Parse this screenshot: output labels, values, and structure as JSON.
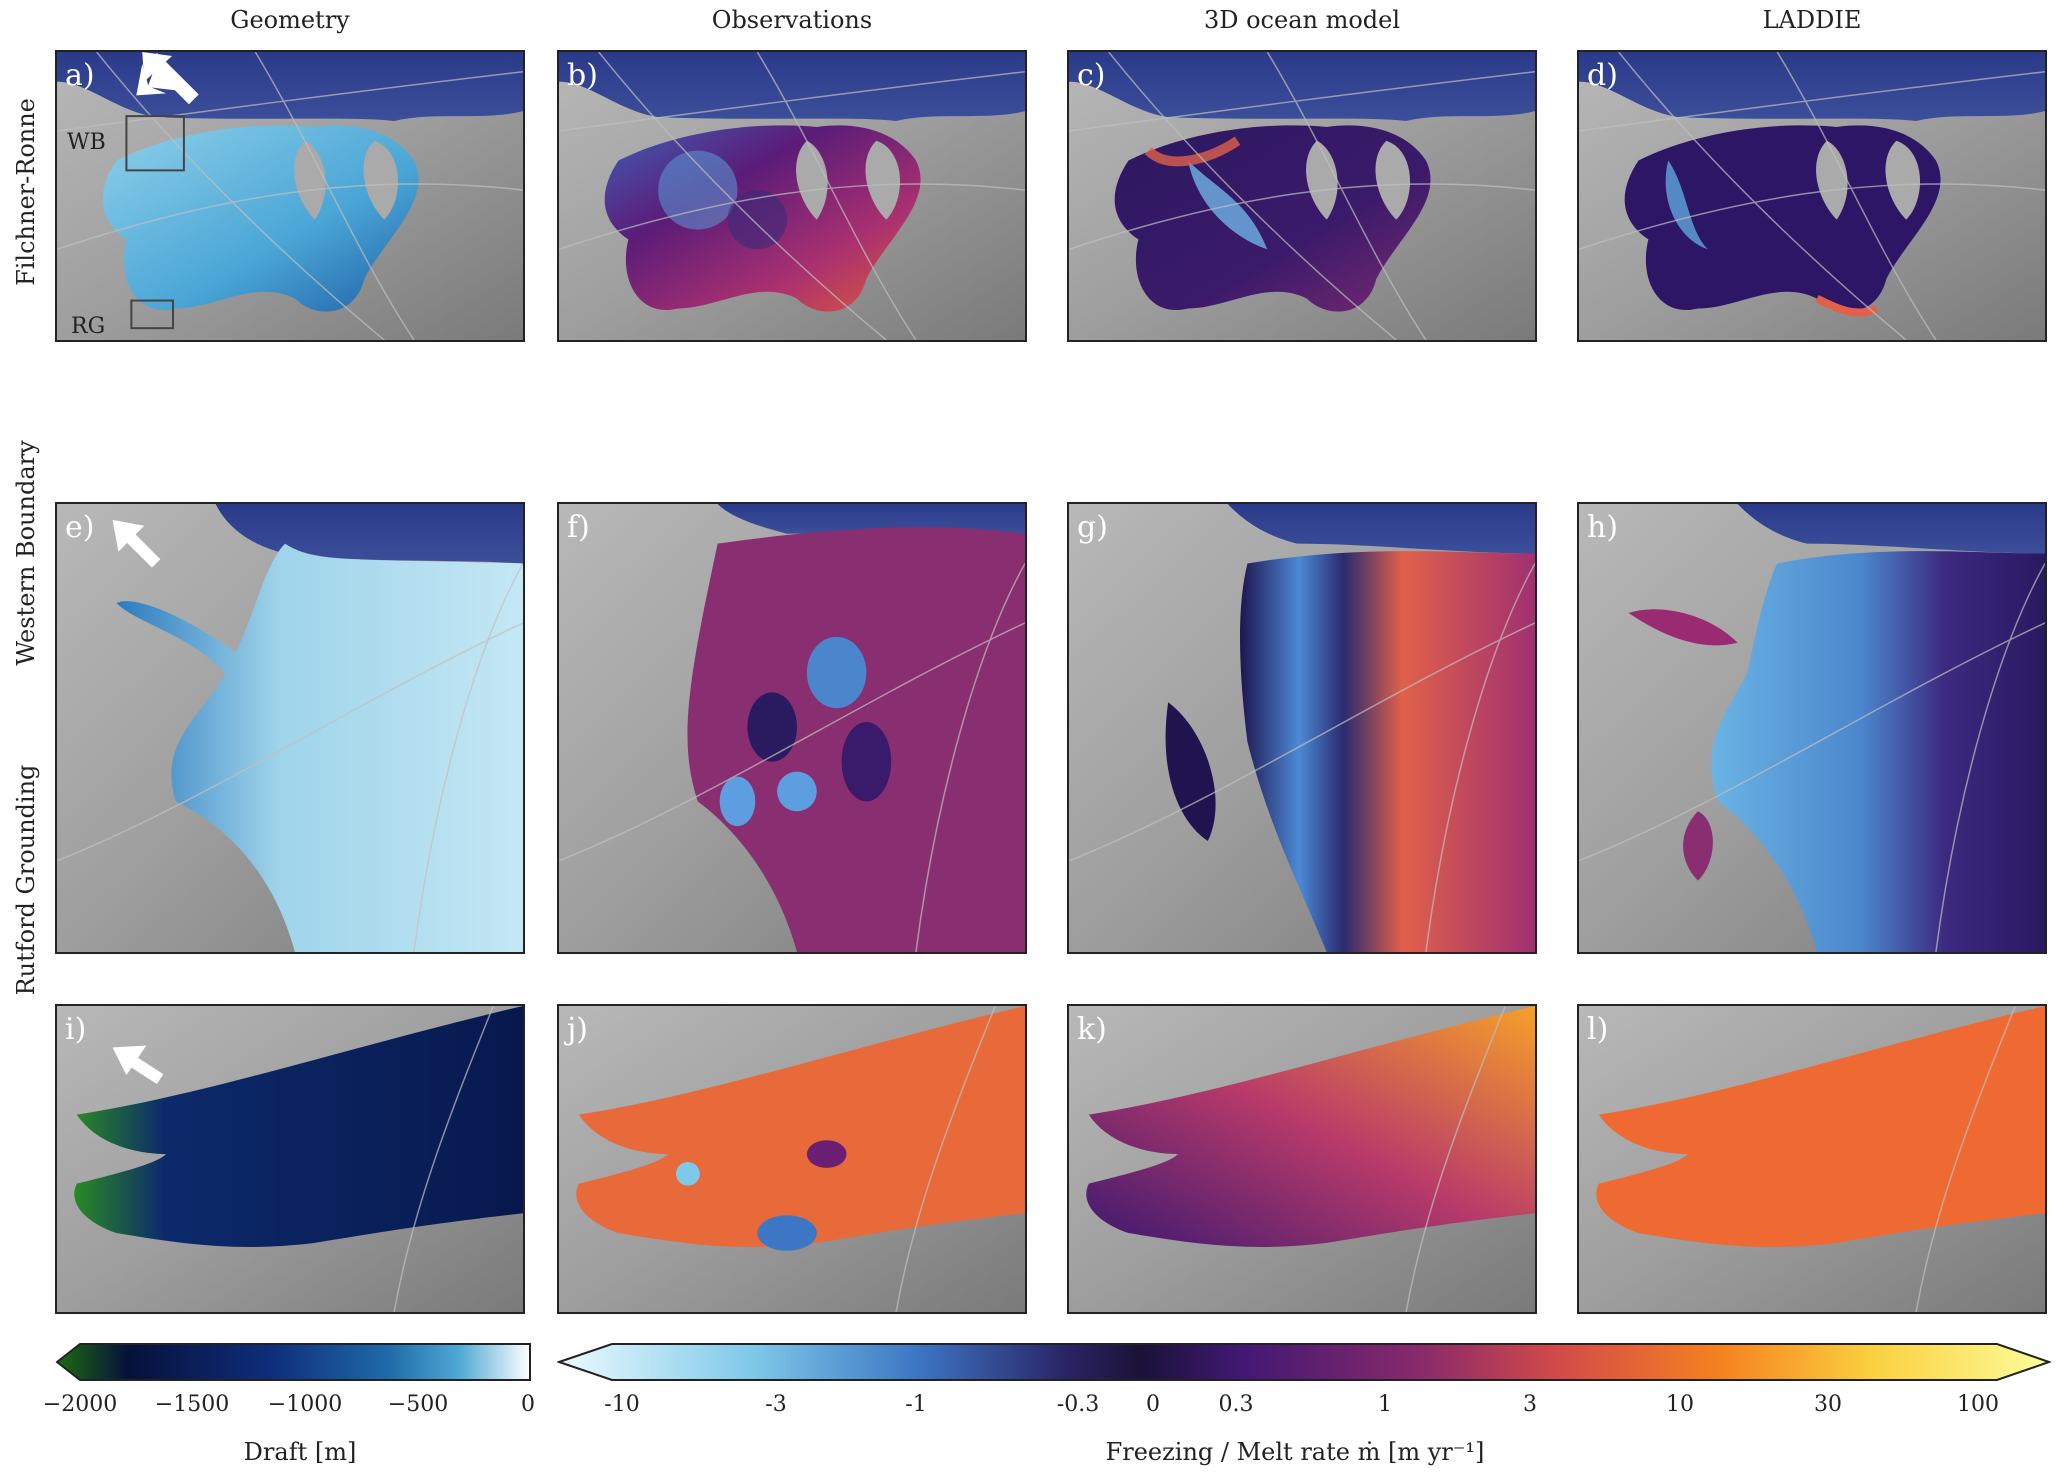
{
  "columns": [
    {
      "title": "Geometry"
    },
    {
      "title": "Observations"
    },
    {
      "title": "3D ocean model"
    },
    {
      "title": "LADDIE"
    }
  ],
  "rows": [
    {
      "title": "Filchner-Ronne"
    },
    {
      "title": "Western Boundary"
    },
    {
      "title": "Rutford Grounding"
    }
  ],
  "panel_labels": [
    "a)",
    "b)",
    "c)",
    "d)",
    "e)",
    "f)",
    "g)",
    "h)",
    "i)",
    "j)",
    "k)",
    "l)"
  ],
  "box_labels": {
    "wb": "WB",
    "rg": "RG"
  },
  "colorbar_draft": {
    "label": "Draft [m]",
    "ticks": [
      "−2000",
      "−1500",
      "−1000",
      "−500",
      "0"
    ],
    "colors": [
      "#1e6a10",
      "#06113a",
      "#0e2d7a",
      "#1f6aa8",
      "#4ea9d4",
      "#ffffff"
    ]
  },
  "colorbar_melt": {
    "label": "Freezing / Melt rate ṁ [m yr⁻¹]",
    "ticks": [
      "-10",
      "-3",
      "-1",
      "-0.3",
      "0",
      "0.3",
      "1",
      "3",
      "10",
      "30",
      "100"
    ],
    "colors": [
      "#ecfbff",
      "#7ec8e8",
      "#3d76c4",
      "#2a2466",
      "#1a1238",
      "#421874",
      "#8a2a6a",
      "#d24a4a",
      "#f58220",
      "#fbcf3e",
      "#fdfd9c"
    ]
  }
}
